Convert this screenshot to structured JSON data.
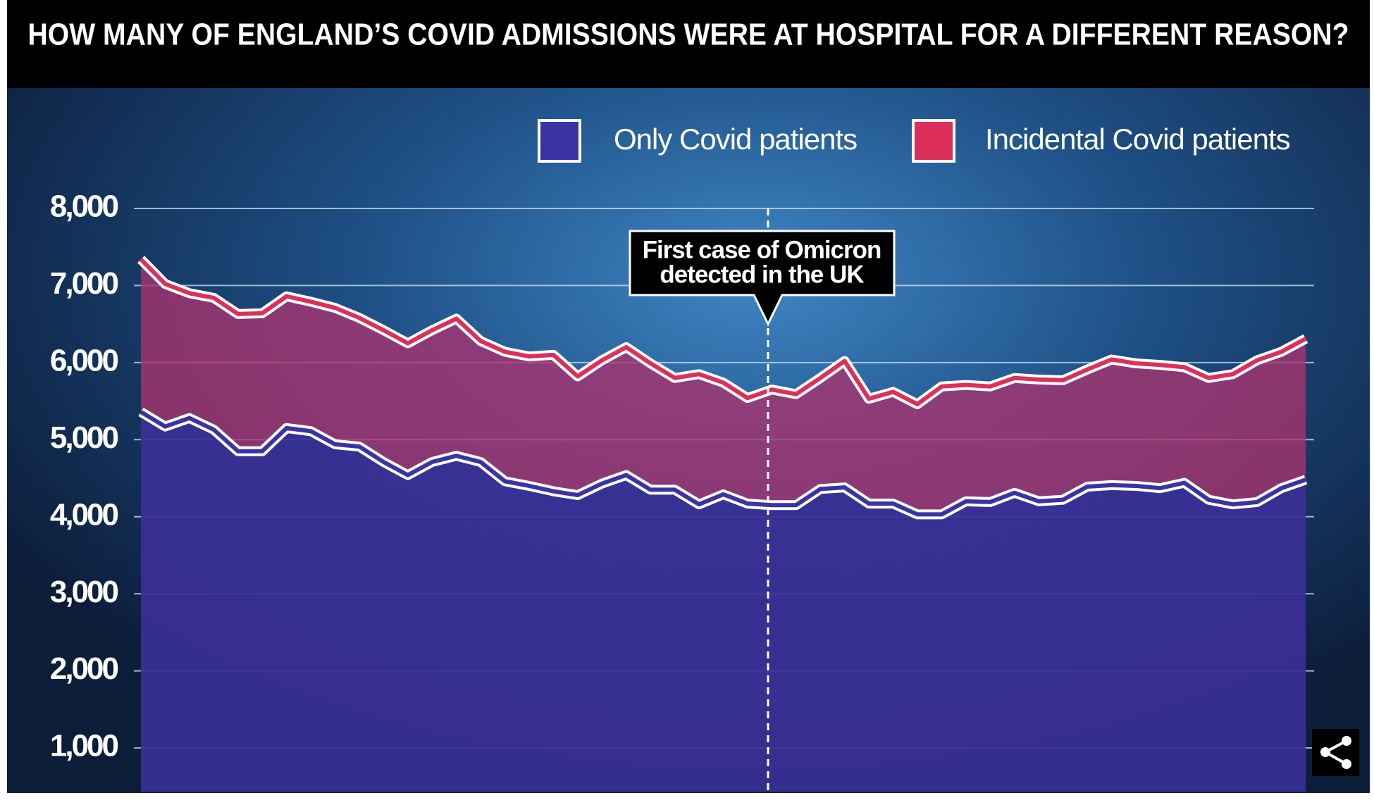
{
  "chart_data": {
    "type": "stacked-area",
    "title": "HOW MANY OF ENGLAND’S COVID ADMISSIONS WERE AT HOSPITAL FOR A DIFFERENT REASON?",
    "categories": [
      null,
      null,
      null,
      null,
      null,
      null,
      null,
      null,
      null,
      null,
      null,
      null,
      null,
      null,
      null,
      null,
      null,
      null,
      null,
      null,
      null,
      null,
      null,
      null,
      null,
      null,
      null,
      null,
      null,
      null,
      null,
      null,
      null,
      null,
      null,
      null,
      null,
      null,
      null,
      null,
      null,
      null,
      null,
      null,
      null,
      null,
      null,
      null,
      null
    ],
    "series": [
      {
        "name": "Only Covid patients",
        "color": "#3a33a3",
        "values": [
          5360,
          5170,
          5280,
          5130,
          4850,
          4850,
          5150,
          5110,
          4940,
          4910,
          4710,
          4540,
          4710,
          4790,
          4710,
          4460,
          4400,
          4330,
          4280,
          4430,
          4540,
          4350,
          4350,
          4160,
          4290,
          4170,
          4150,
          4150,
          4360,
          4380,
          4170,
          4170,
          4030,
          4030,
          4200,
          4190,
          4310,
          4200,
          4220,
          4390,
          4410,
          4400,
          4370,
          4440,
          4220,
          4160,
          4190,
          4370,
          4480
        ]
      },
      {
        "name": "Incidental Covid patients",
        "color": "#dc2f5a",
        "values": [
          1980,
          1850,
          1620,
          1710,
          1780,
          1790,
          1710,
          1680,
          1770,
          1670,
          1710,
          1710,
          1710,
          1780,
          1570,
          1680,
          1680,
          1770,
          1540,
          1600,
          1660,
          1640,
          1450,
          1690,
          1450,
          1370,
          1500,
          1440,
          1440,
          1640,
          1360,
          1450,
          1430,
          1660,
          1510,
          1500,
          1490,
          1580,
          1550,
          1520,
          1630,
          1590,
          1600,
          1500,
          1580,
          1690,
          1840,
          1770,
          1830
        ]
      }
    ],
    "ylim": [
      430,
      8000
    ],
    "yticks": [
      {
        "value": 1000,
        "label": "1,000"
      },
      {
        "value": 2000,
        "label": "2,000"
      },
      {
        "value": 3000,
        "label": "3,000"
      },
      {
        "value": 4000,
        "label": "4,000"
      },
      {
        "value": 5000,
        "label": "5,000"
      },
      {
        "value": 6000,
        "label": "6,000"
      },
      {
        "value": 7000,
        "label": "7,000"
      },
      {
        "value": 8000,
        "label": "8,000"
      }
    ],
    "grid": true,
    "legend": "top-right",
    "annotation": [
      "First case of Omicron",
      "detected in the UK"
    ]
  }
}
